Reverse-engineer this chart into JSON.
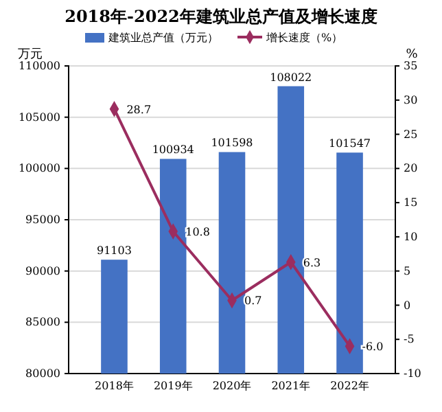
{
  "chart_data": {
    "type": "bar",
    "title": "2018年-2022年建筑业总产值及增长速度",
    "ylabel": "万元",
    "y2label": "%",
    "categories": [
      "2018年",
      "2019年",
      "2020年",
      "2021年",
      "2022年"
    ],
    "series": [
      {
        "name": "建筑业总产值（万元）",
        "color": "#4472c4",
        "values": [
          91103,
          100934,
          101598,
          108022,
          101547
        ]
      },
      {
        "name": "增长速度（%）",
        "type": "line",
        "axis": "y2",
        "color": "#9b2d5f",
        "marker": "diamond",
        "values": [
          28.7,
          10.8,
          0.7,
          6.3,
          -6.0
        ],
        "value_labels": [
          "28.7",
          "10.8",
          "0.7",
          "6.3",
          "-6.0"
        ]
      }
    ],
    "ylim": [
      80000,
      110000
    ],
    "yticks": [
      80000,
      85000,
      90000,
      95000,
      100000,
      105000,
      110000
    ],
    "y2lim": [
      -10,
      35
    ],
    "y2ticks": [
      -10,
      -5,
      0,
      5,
      10,
      15,
      20,
      25,
      30,
      35
    ],
    "grid": "y",
    "legend": "top",
    "data_labels": true
  }
}
